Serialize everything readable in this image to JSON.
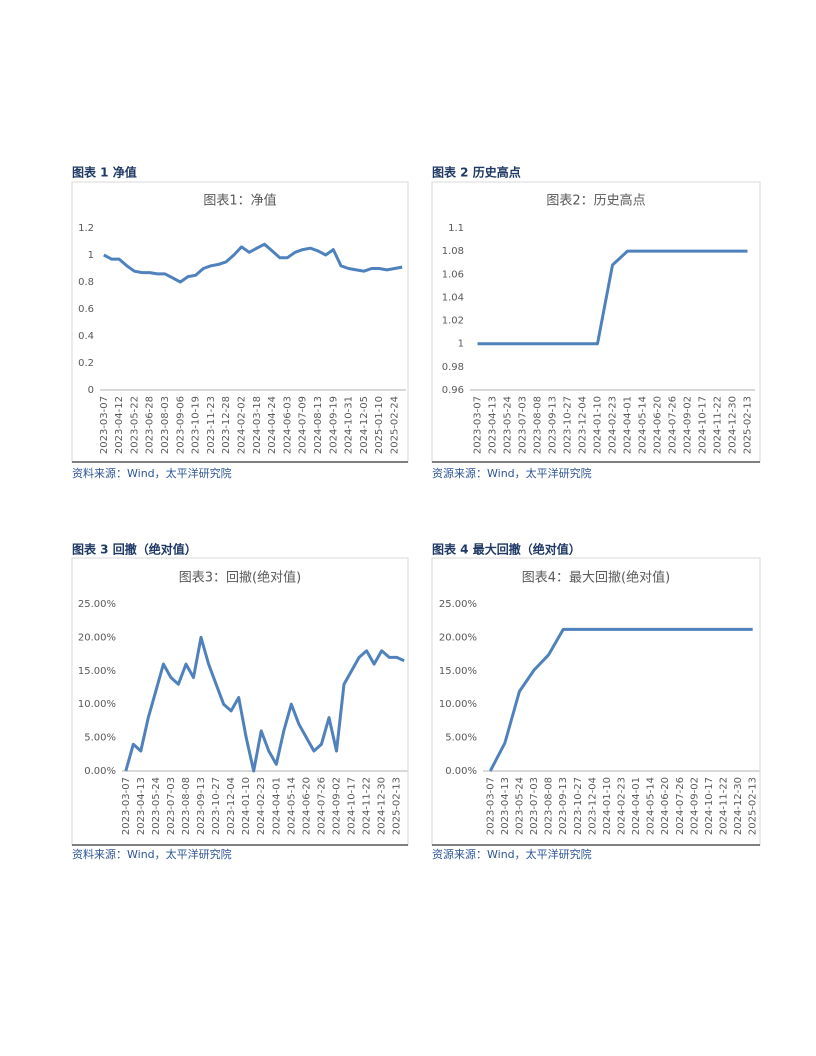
{
  "panels": [
    {
      "heading": "图表 1 净值",
      "source": "资料来源：Wind，太平洋研究院"
    },
    {
      "heading": "图表 2 历史高点",
      "source": "资源来源：Wind，太平洋研究院"
    },
    {
      "heading": "图表 3 回撤（绝对值）",
      "source": "资料来源：Wind，太平洋研究院"
    },
    {
      "heading": "图表 4 最大回撤（绝对值）",
      "source": "资源来源：Wind，太平洋研究院"
    }
  ],
  "chart_data": [
    {
      "type": "line",
      "title": "图表1：净值",
      "color": "#4f81bd",
      "grid": false,
      "categories": [
        "2023-03-07",
        null,
        "2023-04-12",
        null,
        "2023-05-22",
        null,
        "2023-06-28",
        null,
        "2023-08-03",
        null,
        "2023-09-06",
        null,
        "2023-10-19",
        null,
        "2023-11-23",
        null,
        "2023-12-28",
        null,
        "2024-02-02",
        null,
        "2024-03-18",
        null,
        "2024-04-24",
        null,
        "2024-06-03",
        null,
        "2024-07-09",
        null,
        "2024-08-13",
        null,
        "2024-09-19",
        null,
        "2024-10-31",
        null,
        "2024-12-05",
        null,
        "2025-01-10",
        null,
        "2025-02-24",
        null
      ],
      "values": [
        1.0,
        0.97,
        0.97,
        0.92,
        0.88,
        0.87,
        0.87,
        0.86,
        0.86,
        0.83,
        0.8,
        0.84,
        0.85,
        0.9,
        0.92,
        0.93,
        0.95,
        1.0,
        1.06,
        1.02,
        1.05,
        1.08,
        1.03,
        0.98,
        0.98,
        1.02,
        1.04,
        1.05,
        1.03,
        1.0,
        1.04,
        0.92,
        0.9,
        0.89,
        0.88,
        0.9,
        0.9,
        0.89,
        0.9,
        0.91
      ],
      "ylim": [
        0,
        1.2
      ],
      "yticks": [
        0,
        0.2,
        0.4,
        0.6,
        0.8,
        1,
        1.2
      ]
    },
    {
      "type": "line",
      "title": "图表2：历史高点",
      "color": "#4f81bd",
      "grid": false,
      "categories": [
        "2023-03-07",
        "2023-04-13",
        "2023-05-24",
        "2023-07-03",
        "2023-08-08",
        "2023-09-13",
        "2023-10-27",
        "2023-12-04",
        "2024-01-10",
        "2024-02-23",
        "2024-04-01",
        "2024-05-14",
        "2024-06-20",
        "2024-07-26",
        "2024-09-02",
        "2024-10-17",
        "2024-11-22",
        "2024-12-30",
        "2025-02-13"
      ],
      "values": [
        1,
        1,
        1,
        1,
        1,
        1,
        1,
        1,
        1,
        1.068,
        1.08,
        1.08,
        1.08,
        1.08,
        1.08,
        1.08,
        1.08,
        1.08,
        1.08
      ],
      "ylim": [
        0.96,
        1.1
      ],
      "yticks": [
        0.96,
        0.98,
        1,
        1.02,
        1.04,
        1.06,
        1.08,
        1.1
      ]
    },
    {
      "type": "line",
      "title": "图表3：回撤(绝对值)",
      "color": "#4f81bd",
      "grid": false,
      "categories": [
        "2023-03-07",
        null,
        "2023-04-13",
        null,
        "2023-05-24",
        null,
        "2023-07-03",
        null,
        "2023-08-08",
        null,
        "2023-09-13",
        null,
        "2023-10-27",
        null,
        "2023-12-04",
        null,
        "2024-01-10",
        null,
        "2024-02-23",
        null,
        "2024-04-01",
        null,
        "2024-05-14",
        null,
        "2024-06-20",
        null,
        "2024-07-26",
        null,
        "2024-09-02",
        null,
        "2024-10-17",
        null,
        "2024-11-22",
        null,
        "2024-12-30",
        null,
        "2025-02-13",
        null
      ],
      "values": [
        0,
        4,
        3,
        8,
        12,
        16,
        14,
        13,
        16,
        14,
        20,
        16,
        13,
        10,
        9,
        11,
        5,
        0,
        6,
        3,
        1,
        6,
        10,
        7,
        5,
        3,
        4,
        8,
        3,
        13,
        15,
        17,
        18,
        16,
        18,
        17,
        17,
        16.5
      ],
      "ylim": [
        0,
        25
      ],
      "yticks": [
        {
          "value": 0,
          "label": "0.00%"
        },
        {
          "value": 5,
          "label": "5.00%"
        },
        {
          "value": 10,
          "label": "10.00%"
        },
        {
          "value": 15,
          "label": "15.00%"
        },
        {
          "value": 20,
          "label": "20.00%"
        },
        {
          "value": 25,
          "label": "25.00%"
        }
      ]
    },
    {
      "type": "line",
      "title": "图表4：最大回撤(绝对值)",
      "color": "#4f81bd",
      "grid": false,
      "categories": [
        "2023-03-07",
        "2023-04-13",
        "2023-05-24",
        "2023-07-03",
        "2023-08-08",
        "2023-09-13",
        "2023-10-27",
        "2023-12-04",
        "2024-01-10",
        "2024-02-23",
        "2024-04-01",
        "2024-05-14",
        "2024-06-20",
        "2024-07-26",
        "2024-09-02",
        "2024-10-17",
        "2024-11-22",
        "2024-12-30",
        "2025-02-13"
      ],
      "values": [
        0,
        4.2,
        11.9,
        15.1,
        17.4,
        21.2,
        21.2,
        21.2,
        21.2,
        21.2,
        21.2,
        21.2,
        21.2,
        21.2,
        21.2,
        21.2,
        21.2,
        21.2,
        21.2
      ],
      "ylim": [
        0,
        25
      ],
      "yticks": [
        {
          "value": 0,
          "label": "0.00%"
        },
        {
          "value": 5,
          "label": "5.00%"
        },
        {
          "value": 10,
          "label": "10.00%"
        },
        {
          "value": 15,
          "label": "15.00%"
        },
        {
          "value": 20,
          "label": "20.00%"
        },
        {
          "value": 25,
          "label": "25.00%"
        }
      ]
    }
  ]
}
